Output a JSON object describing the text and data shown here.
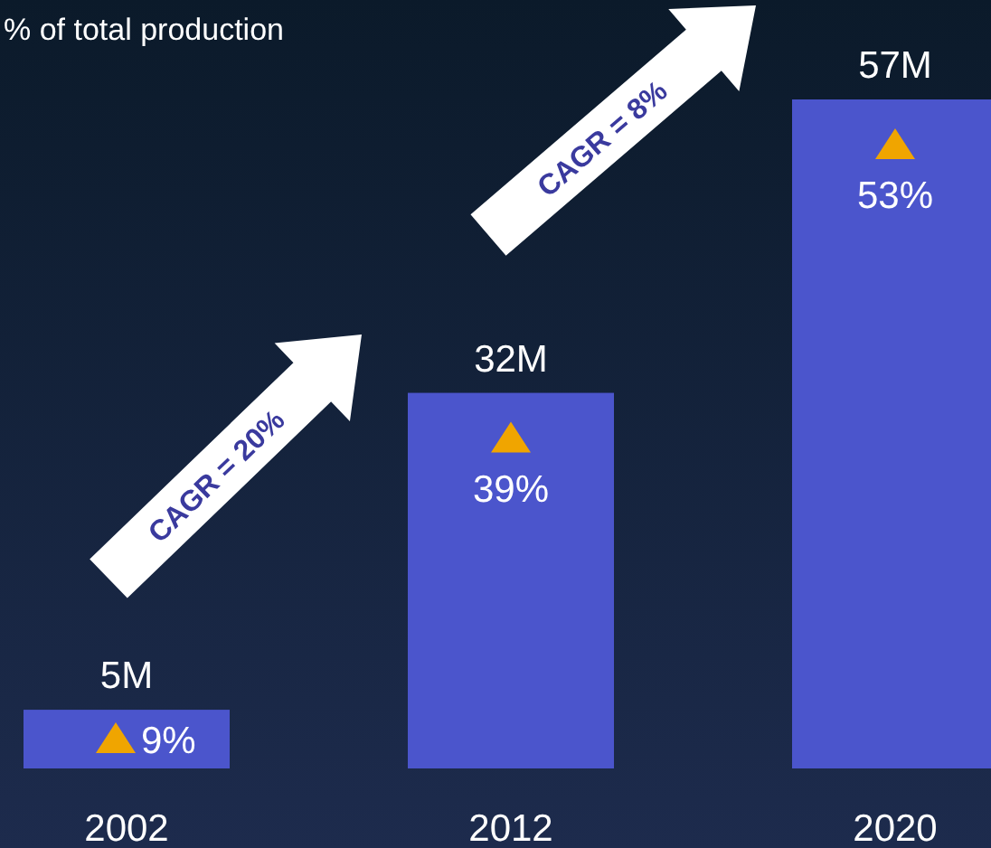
{
  "chart_data": {
    "type": "bar",
    "categories": [
      "2002",
      "2012",
      "2020"
    ],
    "values": [
      5,
      32,
      57
    ],
    "value_labels": [
      "5M",
      "32M",
      "57M"
    ],
    "color": "#4b55cc",
    "annotations": [
      "% of total production",
      "CAGR = 20%",
      "CAGR = 8%",
      "9%",
      "39%",
      "53%"
    ]
  }
}
